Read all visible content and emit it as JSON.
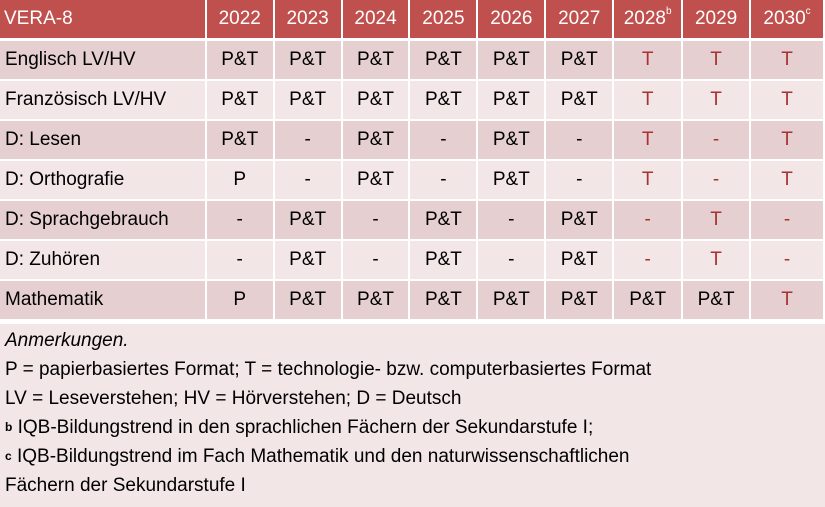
{
  "header": {
    "title": "VERA-8",
    "years": [
      {
        "label": "2022",
        "sup": ""
      },
      {
        "label": "2023",
        "sup": ""
      },
      {
        "label": "2024",
        "sup": ""
      },
      {
        "label": "2025",
        "sup": ""
      },
      {
        "label": "2026",
        "sup": ""
      },
      {
        "label": "2027",
        "sup": ""
      },
      {
        "label": "2028",
        "sup": "b"
      },
      {
        "label": "2029",
        "sup": ""
      },
      {
        "label": "2030",
        "sup": "c"
      }
    ]
  },
  "rows": [
    {
      "subject": "Englisch LV/HV",
      "cells": [
        "P&T",
        "P&T",
        "P&T",
        "P&T",
        "P&T",
        "P&T",
        "T",
        "T",
        "T"
      ]
    },
    {
      "subject": "Französisch LV/HV",
      "cells": [
        "P&T",
        "P&T",
        "P&T",
        "P&T",
        "P&T",
        "P&T",
        "T",
        "T",
        "T"
      ]
    },
    {
      "subject": "D: Lesen",
      "cells": [
        "P&T",
        "-",
        "P&T",
        "-",
        "P&T",
        "-",
        "T",
        "-",
        "T"
      ]
    },
    {
      "subject": "D: Orthografie",
      "cells": [
        "P",
        "-",
        "P&T",
        "-",
        "P&T",
        "-",
        "T",
        "-",
        "T"
      ]
    },
    {
      "subject": "D: Sprachgebrauch",
      "cells": [
        "-",
        "P&T",
        "-",
        "P&T",
        "-",
        "P&T",
        "-",
        "T",
        "-"
      ]
    },
    {
      "subject": "D: Zuhören",
      "cells": [
        "-",
        "P&T",
        "-",
        "P&T",
        "-",
        "P&T",
        "-",
        "T",
        "-"
      ]
    },
    {
      "subject": "Mathematik",
      "cells": [
        "P",
        "P&T",
        "P&T",
        "P&T",
        "P&T",
        "P&T",
        "P&T",
        "P&T",
        "T"
      ]
    }
  ],
  "notes": {
    "heading": "Anmerkungen.",
    "line1": "P = papierbasiertes Format; T = technologie- bzw. computerbasiertes Format",
    "line2": "LV = Leseverstehen; HV = Hörverstehen; D = Deutsch",
    "b_mark": "b",
    "b_text": " IQB-Bildungstrend in den sprachlichen Fächern der Sekundarstufe I;",
    "c_mark": "c",
    "c_text": " IQB-Bildungstrend im Fach Mathematik und den naturwissenschaftlichen",
    "c_text2": "Fächern der Sekundarstufe I"
  },
  "colors": {
    "header_bg": "#c0504d",
    "row_dark": "#e6cfd0",
    "row_light": "#f2e6e7",
    "future_text": "#a8322f"
  }
}
